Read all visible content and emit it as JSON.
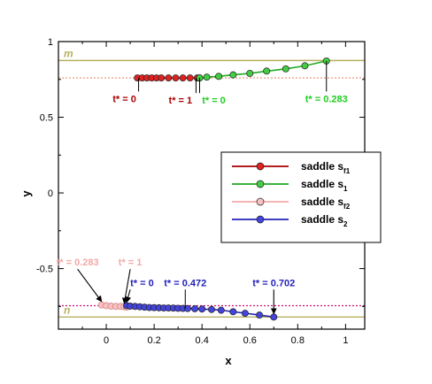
{
  "chart_data": {
    "type": "line",
    "xlabel": "x",
    "ylabel": "y",
    "xlim": [
      -0.2,
      1.08
    ],
    "ylim": [
      -0.9,
      1.0
    ],
    "xticks": [
      0,
      0.2,
      0.4,
      0.6,
      0.8,
      1
    ],
    "xtick_labels": [
      "0",
      "0.2",
      "0.4",
      "0.6",
      "0.8",
      "1"
    ],
    "yticks": [
      -0.5,
      0,
      0.5,
      1
    ],
    "ytick_labels": [
      "-0.5",
      "0",
      "0.5",
      "1"
    ],
    "grid": false,
    "legend_position": "right",
    "hlines": [
      {
        "label": "m",
        "y": 0.875,
        "color": "#b8b060",
        "style": "solid"
      },
      {
        "label": "",
        "y": 0.76,
        "color": "#f0a08a",
        "style": "dotted"
      },
      {
        "label": "",
        "y": -0.745,
        "color": "#cc1177",
        "style": "dotted"
      },
      {
        "label": "n",
        "y": -0.82,
        "color": "#b8b060",
        "style": "solid"
      }
    ],
    "series": [
      {
        "name": "saddle s",
        "sub": "f1",
        "color": "#aa0000",
        "fill": "#dd2222",
        "x": [
          0.13,
          0.15,
          0.17,
          0.19,
          0.21,
          0.23,
          0.26,
          0.29,
          0.32,
          0.35,
          0.38,
          0.39
        ],
        "y": [
          0.76,
          0.76,
          0.76,
          0.76,
          0.76,
          0.76,
          0.76,
          0.76,
          0.76,
          0.76,
          0.76,
          0.76
        ]
      },
      {
        "name": "saddle s",
        "sub": "1",
        "color": "#22aa22",
        "fill": "#44cc44",
        "x": [
          0.39,
          0.42,
          0.47,
          0.53,
          0.6,
          0.67,
          0.75,
          0.83,
          0.92
        ],
        "y": [
          0.76,
          0.765,
          0.77,
          0.78,
          0.79,
          0.805,
          0.82,
          0.84,
          0.872
        ]
      },
      {
        "name": "saddle s",
        "sub": "f2",
        "color": "#f4a8a8",
        "fill": "#f8c0c0",
        "x": [
          -0.02,
          0.0,
          0.02,
          0.04,
          0.06,
          0.075,
          0.085
        ],
        "y": [
          -0.74,
          -0.745,
          -0.748,
          -0.75,
          -0.75,
          -0.752,
          -0.755
        ]
      },
      {
        "name": "saddle s",
        "sub": "2",
        "color": "#2222bb",
        "fill": "#4444dd",
        "x": [
          0.085,
          0.1,
          0.12,
          0.14,
          0.16,
          0.18,
          0.2,
          0.22,
          0.24,
          0.26,
          0.28,
          0.3,
          0.32,
          0.34,
          0.37,
          0.4,
          0.44,
          0.48,
          0.53,
          0.58,
          0.64,
          0.7
        ],
        "y": [
          -0.745,
          -0.748,
          -0.75,
          -0.752,
          -0.755,
          -0.757,
          -0.758,
          -0.759,
          -0.76,
          -0.76,
          -0.761,
          -0.762,
          -0.763,
          -0.764,
          -0.765,
          -0.767,
          -0.77,
          -0.775,
          -0.785,
          -0.795,
          -0.807,
          -0.82
        ]
      }
    ],
    "annotations": [
      {
        "text": "t* = 0",
        "color": "#aa0000",
        "x": 0.135,
        "y": 0.76,
        "tx": 0.125,
        "ty": 0.6,
        "anchor": "end",
        "leader": "plain"
      },
      {
        "text": "t* = 1",
        "color": "#aa0000",
        "x": 0.375,
        "y": 0.76,
        "tx": 0.31,
        "ty": 0.59,
        "anchor": "middle",
        "leader": "plain"
      },
      {
        "text": "t* = 0",
        "color": "#22cc22",
        "x": 0.39,
        "y": 0.76,
        "tx": 0.4,
        "ty": 0.59,
        "anchor": "start",
        "leader": "plain"
      },
      {
        "text": "t* = 0.283",
        "color": "#22cc22",
        "x": 0.92,
        "y": 0.872,
        "tx": 0.92,
        "ty": 0.6,
        "anchor": "middle",
        "leader": "plain"
      },
      {
        "text": "t* = 0.283",
        "color": "#f4a8a8",
        "x": -0.02,
        "y": -0.74,
        "tx": -0.12,
        "ty": -0.48,
        "anchor": "middle",
        "leader": "arrow"
      },
      {
        "text": "t* = 1",
        "color": "#f4a8a8",
        "x": 0.075,
        "y": -0.752,
        "tx": 0.1,
        "ty": -0.48,
        "anchor": "middle",
        "leader": "arrow"
      },
      {
        "text": "t* = 0",
        "color": "#2222bb",
        "x": 0.085,
        "y": -0.745,
        "tx": 0.1,
        "ty": -0.615,
        "anchor": "start",
        "leader": "arrow"
      },
      {
        "text": "t* = 0.472",
        "color": "#2222bb",
        "x": 0.33,
        "y": -0.764,
        "tx": 0.33,
        "ty": -0.615,
        "anchor": "middle",
        "leader": "plain"
      },
      {
        "text": "t* = 0.702",
        "color": "#2222bb",
        "x": 0.7,
        "y": -0.82,
        "tx": 0.7,
        "ty": -0.615,
        "anchor": "middle",
        "leader": "arrow"
      }
    ]
  }
}
